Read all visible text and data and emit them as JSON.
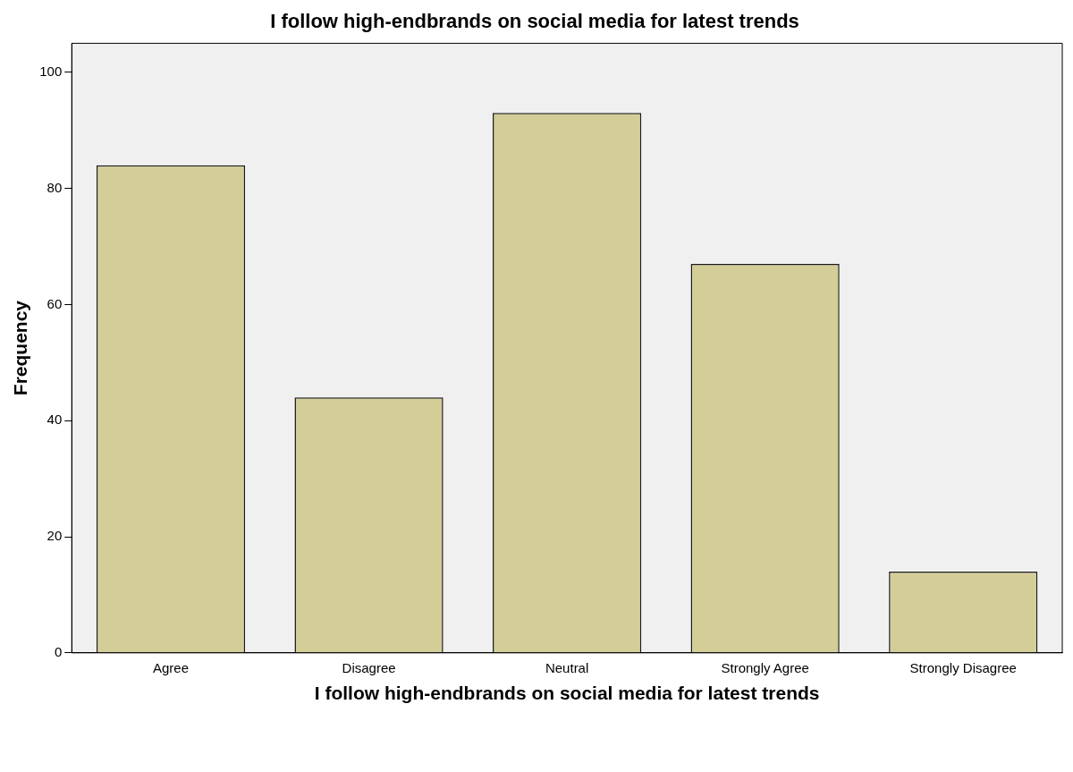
{
  "chart_data": {
    "type": "bar",
    "title": "I follow high-endbrands on social media for latest trends",
    "xlabel": "I follow high-endbrands on social media for latest trends",
    "ylabel": "Frequency",
    "categories": [
      "Agree",
      "Disagree",
      "Neutral",
      "Strongly Agree",
      "Strongly Disagree"
    ],
    "values": [
      84,
      44,
      93,
      67,
      14
    ],
    "color": "#d3ce97",
    "ylim": [
      0,
      105
    ],
    "yticks": [
      0,
      20,
      40,
      60,
      80,
      100
    ],
    "grid": false,
    "legend": false
  }
}
